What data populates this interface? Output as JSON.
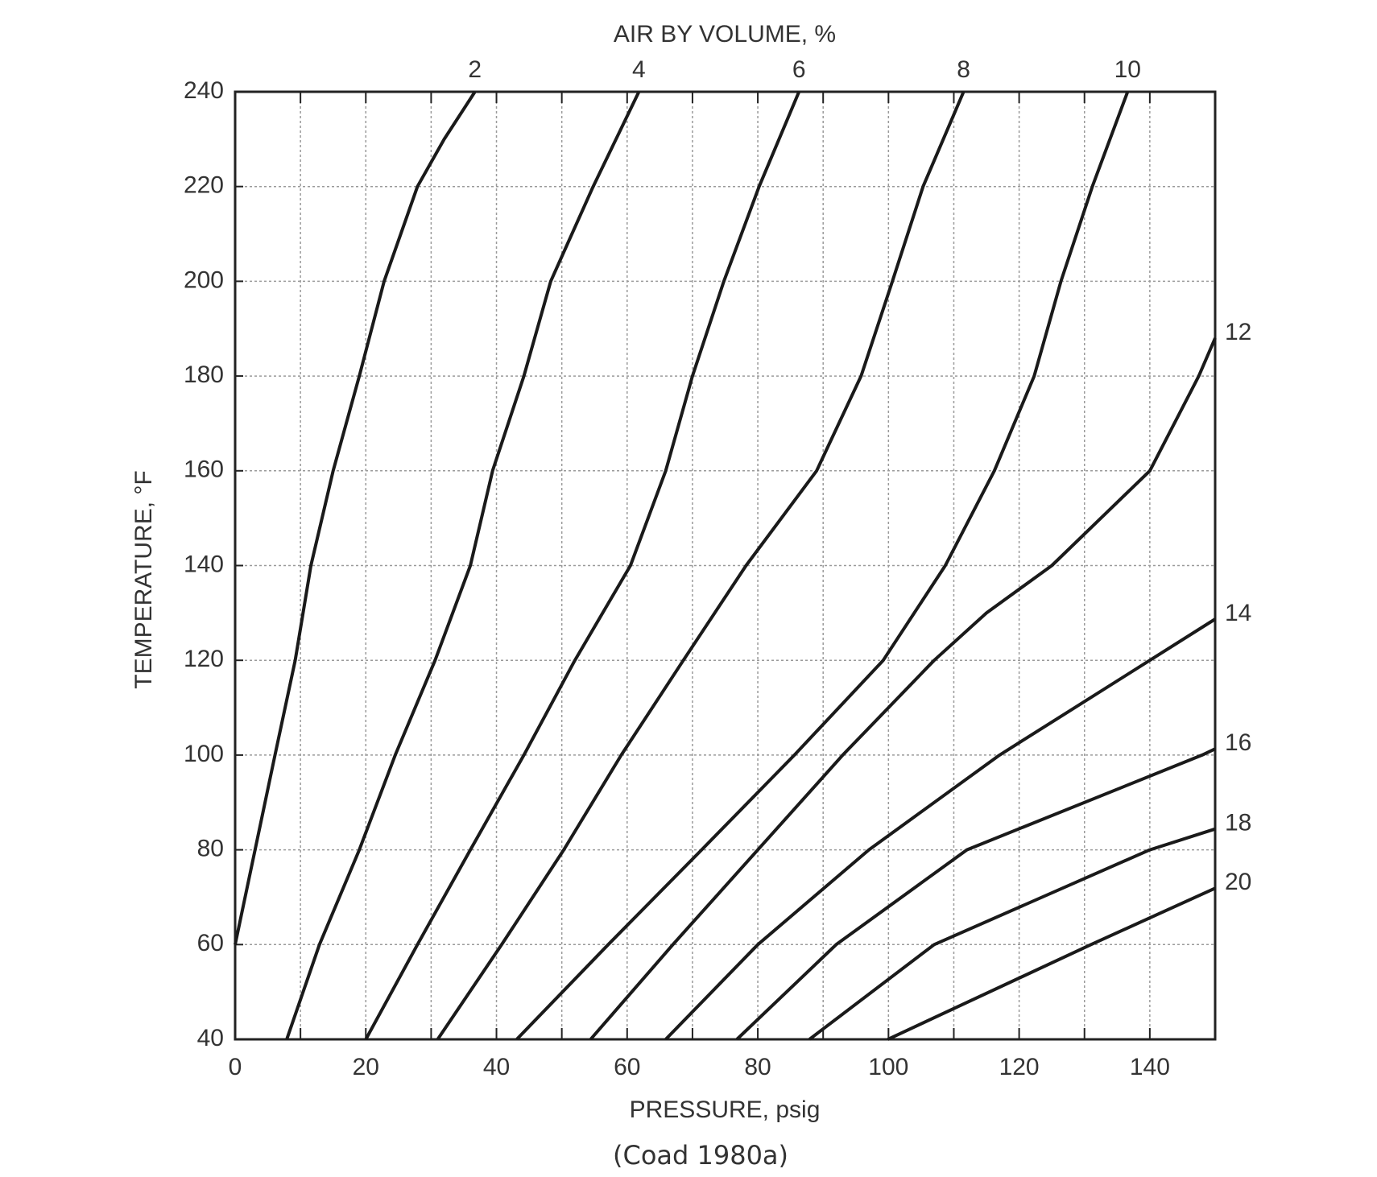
{
  "chart_data": {
    "type": "line",
    "title": "AIR BY VOLUME, %",
    "x_label": "PRESSURE, psig",
    "y_label": "TEMPERATURE, °F",
    "source": "(Coad 1980a)",
    "xlim": [
      0,
      150
    ],
    "ylim": [
      40,
      240
    ],
    "xticks": [
      0,
      20,
      40,
      60,
      80,
      100,
      120,
      140
    ],
    "x_minor_ticks": [
      10,
      30,
      50,
      70,
      90,
      110,
      130,
      150
    ],
    "yticks": [
      40,
      60,
      80,
      100,
      120,
      140,
      160,
      180,
      200,
      220,
      240
    ],
    "grid": true,
    "color": "#1a1a1a",
    "series": [
      {
        "name": "2",
        "x": [
          0,
          6.1,
          9.2,
          11.6,
          15,
          19,
          22.8,
          27.9,
          32,
          36.7
        ],
        "values": [
          60,
          100,
          120,
          140,
          160,
          180,
          200,
          220,
          230,
          240
        ]
      },
      {
        "name": "4",
        "x": [
          7.9,
          12.9,
          19,
          24.5,
          30.6,
          36,
          39.4,
          44.2,
          48.3,
          54.8,
          61.8
        ],
        "values": [
          40,
          60,
          80,
          100,
          120,
          140,
          160,
          180,
          200,
          220,
          240
        ]
      },
      {
        "name": "6",
        "x": [
          20,
          27.9,
          36,
          44.2,
          52,
          60.5,
          65.9,
          70,
          74.8,
          80.2,
          86.3
        ],
        "values": [
          40,
          60,
          80,
          100,
          120,
          140,
          160,
          180,
          200,
          220,
          240
        ]
      },
      {
        "name": "8",
        "x": [
          31,
          40.8,
          50.3,
          59.1,
          68.6,
          78.2,
          89,
          95.8,
          100.6,
          105.3,
          111.5
        ],
        "values": [
          40,
          60,
          80,
          100,
          120,
          140,
          160,
          180,
          200,
          220,
          240
        ]
      },
      {
        "name": "10",
        "x": [
          43.1,
          57.1,
          71.4,
          85.6,
          99.2,
          108.7,
          116.2,
          122.3,
          126.4,
          131.2,
          136.6
        ],
        "values": [
          40,
          60,
          80,
          100,
          120,
          140,
          160,
          180,
          200,
          220,
          240
        ]
      },
      {
        "name": "12",
        "x": [
          54.4,
          67,
          80,
          93,
          107,
          115,
          125,
          140,
          147.5,
          150
        ],
        "values": [
          40,
          60,
          80,
          100,
          120,
          130,
          140,
          160,
          180,
          188
        ]
      },
      {
        "name": "14",
        "x": [
          65.9,
          80,
          97,
          117,
          140,
          150
        ],
        "values": [
          40,
          60,
          80,
          100,
          120,
          128.7
        ]
      },
      {
        "name": "16",
        "x": [
          76.8,
          92,
          112,
          148,
          150
        ],
        "values": [
          40,
          60,
          80,
          100,
          101.3
        ]
      },
      {
        "name": "18",
        "x": [
          87.9,
          107,
          140,
          150
        ],
        "values": [
          40,
          60,
          80,
          84.4
        ]
      },
      {
        "name": "20",
        "x": [
          99.9,
          131,
          150
        ],
        "values": [
          40,
          60,
          71.9
        ]
      }
    ]
  }
}
